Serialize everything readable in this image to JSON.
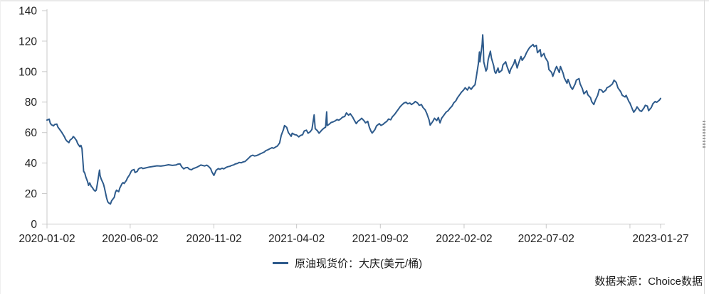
{
  "page": {
    "background": "#ffffff",
    "source": "数据来源：Choice数据"
  },
  "chart_data": {
    "type": "line",
    "title": "",
    "series_name": "原油现货价：大庆(美元/桶)",
    "unit": "美元/桶",
    "line_color": "#2E5B8C",
    "axis_color": "#c8c8c8",
    "label_color": "#222222",
    "grid": false,
    "legend_position": "bottom-center",
    "ylim": [
      0,
      140
    ],
    "y_ticks": [
      0,
      20,
      40,
      60,
      80,
      100,
      120,
      140
    ],
    "x_range": [
      "2020-01-02",
      "2023-01-27"
    ],
    "x_ticks": [
      {
        "date": "2020-01-02",
        "label": "2020-01-02"
      },
      {
        "date": "2020-06-02",
        "label": "2020-06-02"
      },
      {
        "date": "2020-11-02",
        "label": "2020-11-02"
      },
      {
        "date": "2021-04-02",
        "label": "2021-04-02"
      },
      {
        "date": "2021-09-02",
        "label": "2021-09-02"
      },
      {
        "date": "2022-02-02",
        "label": "2022-02-02"
      },
      {
        "date": "2022-07-02",
        "label": "2022-07-02"
      },
      {
        "date": "2022-12-02",
        "label": ""
      },
      {
        "date": "2023-01-27",
        "label": "2023-01-27"
      }
    ],
    "points": [
      [
        "2020-01-02",
        68.2
      ],
      [
        "2020-01-06",
        68.8
      ],
      [
        "2020-01-08",
        66.2
      ],
      [
        "2020-01-10",
        65.2
      ],
      [
        "2020-01-14",
        64.4
      ],
      [
        "2020-01-16",
        65.3
      ],
      [
        "2020-01-20",
        65.6
      ],
      [
        "2020-01-22",
        63.6
      ],
      [
        "2020-01-27",
        61.2
      ],
      [
        "2020-01-30",
        59.6
      ],
      [
        "2020-02-03",
        57.2
      ],
      [
        "2020-02-05",
        55.6
      ],
      [
        "2020-02-07",
        54.6
      ],
      [
        "2020-02-11",
        53.4
      ],
      [
        "2020-02-13",
        55.0
      ],
      [
        "2020-02-17",
        56.2
      ],
      [
        "2020-02-19",
        57.4
      ],
      [
        "2020-02-21",
        56.8
      ],
      [
        "2020-02-25",
        54.8
      ],
      [
        "2020-02-27",
        52.8
      ],
      [
        "2020-03-02",
        50.8
      ],
      [
        "2020-03-04",
        51.6
      ],
      [
        "2020-03-06",
        49.4
      ],
      [
        "2020-03-09",
        34.6
      ],
      [
        "2020-03-11",
        33.4
      ],
      [
        "2020-03-13",
        30.8
      ],
      [
        "2020-03-16",
        28.0
      ],
      [
        "2020-03-18",
        25.4
      ],
      [
        "2020-03-20",
        27.0
      ],
      [
        "2020-03-23",
        24.6
      ],
      [
        "2020-03-25",
        24.0
      ],
      [
        "2020-03-27",
        22.6
      ],
      [
        "2020-03-30",
        21.6
      ],
      [
        "2020-04-01",
        22.2
      ],
      [
        "2020-04-03",
        26.2
      ],
      [
        "2020-04-07",
        35.4
      ],
      [
        "2020-04-08",
        31.8
      ],
      [
        "2020-04-10",
        29.6
      ],
      [
        "2020-04-14",
        26.4
      ],
      [
        "2020-04-16",
        23.8
      ],
      [
        "2020-04-20",
        17.0
      ],
      [
        "2020-04-22",
        14.6
      ],
      [
        "2020-04-24",
        13.8
      ],
      [
        "2020-04-27",
        13.2
      ],
      [
        "2020-04-29",
        15.2
      ],
      [
        "2020-05-04",
        17.6
      ],
      [
        "2020-05-06",
        20.8
      ],
      [
        "2020-05-08",
        22.2
      ],
      [
        "2020-05-12",
        21.2
      ],
      [
        "2020-05-14",
        23.6
      ],
      [
        "2020-05-18",
        26.4
      ],
      [
        "2020-05-20",
        27.2
      ],
      [
        "2020-05-22",
        26.6
      ],
      [
        "2020-05-26",
        28.6
      ],
      [
        "2020-05-28",
        30.2
      ],
      [
        "2020-06-01",
        32.4
      ],
      [
        "2020-06-03",
        34.0
      ],
      [
        "2020-06-05",
        35.2
      ],
      [
        "2020-06-09",
        35.8
      ],
      [
        "2020-06-11",
        33.8
      ],
      [
        "2020-06-15",
        34.6
      ],
      [
        "2020-06-17",
        36.0
      ],
      [
        "2020-06-19",
        36.6
      ],
      [
        "2020-06-23",
        37.0
      ],
      [
        "2020-06-25",
        36.4
      ],
      [
        "2020-06-30",
        36.8
      ],
      [
        "2020-07-07",
        37.4
      ],
      [
        "2020-07-14",
        37.8
      ],
      [
        "2020-07-21",
        38.2
      ],
      [
        "2020-07-28",
        38.0
      ],
      [
        "2020-08-04",
        38.4
      ],
      [
        "2020-08-11",
        38.9
      ],
      [
        "2020-08-18",
        38.5
      ],
      [
        "2020-08-25",
        38.8
      ],
      [
        "2020-08-28",
        39.3
      ],
      [
        "2020-09-01",
        39.5
      ],
      [
        "2020-09-04",
        37.6
      ],
      [
        "2020-09-08",
        36.2
      ],
      [
        "2020-09-11",
        36.9
      ],
      [
        "2020-09-15",
        37.1
      ],
      [
        "2020-09-18",
        36.0
      ],
      [
        "2020-09-22",
        35.6
      ],
      [
        "2020-09-25",
        36.4
      ],
      [
        "2020-09-29",
        36.9
      ],
      [
        "2020-10-02",
        37.3
      ],
      [
        "2020-10-06",
        38.1
      ],
      [
        "2020-10-09",
        38.7
      ],
      [
        "2020-10-13",
        38.4
      ],
      [
        "2020-10-16",
        38.1
      ],
      [
        "2020-10-20",
        38.6
      ],
      [
        "2020-10-23",
        37.9
      ],
      [
        "2020-10-27",
        36.4
      ],
      [
        "2020-10-29",
        34.4
      ],
      [
        "2020-11-02",
        31.9
      ],
      [
        "2020-11-04",
        33.6
      ],
      [
        "2020-11-06",
        35.3
      ],
      [
        "2020-11-10",
        36.4
      ],
      [
        "2020-11-13",
        35.9
      ],
      [
        "2020-11-17",
        36.6
      ],
      [
        "2020-11-20",
        36.2
      ],
      [
        "2020-11-24",
        37.1
      ],
      [
        "2020-11-27",
        37.6
      ],
      [
        "2020-12-01",
        37.9
      ],
      [
        "2020-12-04",
        38.4
      ],
      [
        "2020-12-08",
        38.8
      ],
      [
        "2020-12-11",
        39.4
      ],
      [
        "2020-12-15",
        39.8
      ],
      [
        "2020-12-18",
        40.4
      ],
      [
        "2020-12-22",
        40.2
      ],
      [
        "2020-12-25",
        40.7
      ],
      [
        "2020-12-29",
        41.1
      ],
      [
        "2021-01-05",
        43.4
      ],
      [
        "2021-01-08",
        44.6
      ],
      [
        "2021-01-12",
        45.2
      ],
      [
        "2021-01-15",
        44.7
      ],
      [
        "2021-01-19",
        44.9
      ],
      [
        "2021-01-22",
        45.4
      ],
      [
        "2021-01-26",
        46.1
      ],
      [
        "2021-01-29",
        46.6
      ],
      [
        "2021-02-02",
        47.3
      ],
      [
        "2021-02-05",
        48.2
      ],
      [
        "2021-02-09",
        48.8
      ],
      [
        "2021-02-12",
        49.4
      ],
      [
        "2021-02-16",
        50.1
      ],
      [
        "2021-02-19",
        49.7
      ],
      [
        "2021-02-23",
        50.6
      ],
      [
        "2021-02-26",
        51.2
      ],
      [
        "2021-03-02",
        53.2
      ],
      [
        "2021-03-05",
        58.2
      ],
      [
        "2021-03-09",
        62.0
      ],
      [
        "2021-03-11",
        64.6
      ],
      [
        "2021-03-15",
        63.4
      ],
      [
        "2021-03-18",
        60.0
      ],
      [
        "2021-03-23",
        57.6
      ],
      [
        "2021-03-25",
        59.6
      ],
      [
        "2021-03-30",
        58.6
      ],
      [
        "2021-04-02",
        58.4
      ],
      [
        "2021-04-06",
        57.2
      ],
      [
        "2021-04-09",
        58.1
      ],
      [
        "2021-04-13",
        58.6
      ],
      [
        "2021-04-16",
        61.1
      ],
      [
        "2021-04-20",
        61.6
      ],
      [
        "2021-04-23",
        59.6
      ],
      [
        "2021-04-27",
        60.6
      ],
      [
        "2021-04-30",
        62.1
      ],
      [
        "2021-05-04",
        71.6
      ],
      [
        "2021-05-06",
        62.6
      ],
      [
        "2021-05-10",
        61.2
      ],
      [
        "2021-05-13",
        59.6
      ],
      [
        "2021-05-18",
        61.6
      ],
      [
        "2021-05-21",
        62.6
      ],
      [
        "2021-05-25",
        63.6
      ],
      [
        "2021-05-27",
        73.6
      ],
      [
        "2021-05-28",
        64.6
      ],
      [
        "2021-06-01",
        65.6
      ],
      [
        "2021-06-04",
        66.6
      ],
      [
        "2021-06-08",
        67.1
      ],
      [
        "2021-06-11",
        67.6
      ],
      [
        "2021-06-15",
        68.6
      ],
      [
        "2021-06-18",
        68.1
      ],
      [
        "2021-06-22",
        69.1
      ],
      [
        "2021-06-25",
        70.1
      ],
      [
        "2021-06-29",
        70.6
      ],
      [
        "2021-07-02",
        72.9
      ],
      [
        "2021-07-06",
        71.4
      ],
      [
        "2021-07-09",
        72.4
      ],
      [
        "2021-07-13",
        70.4
      ],
      [
        "2021-07-16",
        68.4
      ],
      [
        "2021-07-20",
        65.9
      ],
      [
        "2021-07-23",
        67.4
      ],
      [
        "2021-07-27",
        68.4
      ],
      [
        "2021-07-30",
        69.4
      ],
      [
        "2021-08-03",
        67.9
      ],
      [
        "2021-08-06",
        66.4
      ],
      [
        "2021-08-10",
        67.4
      ],
      [
        "2021-08-13",
        63.4
      ],
      [
        "2021-08-16",
        60.9
      ],
      [
        "2021-08-18",
        59.7
      ],
      [
        "2021-08-23",
        61.9
      ],
      [
        "2021-08-26",
        64.4
      ],
      [
        "2021-08-31",
        65.9
      ],
      [
        "2021-09-03",
        64.7
      ],
      [
        "2021-09-07",
        65.4
      ],
      [
        "2021-09-10",
        66.4
      ],
      [
        "2021-09-14",
        67.4
      ],
      [
        "2021-09-17",
        68.9
      ],
      [
        "2021-09-21",
        68.4
      ],
      [
        "2021-09-24",
        70.4
      ],
      [
        "2021-09-28",
        71.9
      ],
      [
        "2021-10-01",
        73.4
      ],
      [
        "2021-10-05",
        75.4
      ],
      [
        "2021-10-08",
        76.9
      ],
      [
        "2021-10-12",
        78.4
      ],
      [
        "2021-10-15",
        79.4
      ],
      [
        "2021-10-19",
        79.9
      ],
      [
        "2021-10-22",
        78.9
      ],
      [
        "2021-10-26",
        79.4
      ],
      [
        "2021-10-29",
        78.4
      ],
      [
        "2021-11-02",
        79.4
      ],
      [
        "2021-11-05",
        80.4
      ],
      [
        "2021-11-09",
        79.4
      ],
      [
        "2021-11-12",
        77.9
      ],
      [
        "2021-11-16",
        78.4
      ],
      [
        "2021-11-19",
        76.4
      ],
      [
        "2021-11-23",
        74.9
      ],
      [
        "2021-11-26",
        72.4
      ],
      [
        "2021-11-30",
        68.4
      ],
      [
        "2021-12-02",
        64.9
      ],
      [
        "2021-12-07",
        67.4
      ],
      [
        "2021-12-10",
        69.4
      ],
      [
        "2021-12-14",
        67.9
      ],
      [
        "2021-12-17",
        69.9
      ],
      [
        "2021-12-20",
        66.4
      ],
      [
        "2021-12-23",
        69.4
      ],
      [
        "2021-12-28",
        71.9
      ],
      [
        "2021-12-31",
        73.4
      ],
      [
        "2022-01-04",
        74.4
      ],
      [
        "2022-01-07",
        75.9
      ],
      [
        "2022-01-11",
        77.4
      ],
      [
        "2022-01-14",
        79.4
      ],
      [
        "2022-01-18",
        80.9
      ],
      [
        "2022-01-21",
        82.9
      ],
      [
        "2022-01-25",
        84.9
      ],
      [
        "2022-01-28",
        86.4
      ],
      [
        "2022-02-01",
        87.9
      ],
      [
        "2022-02-04",
        89.4
      ],
      [
        "2022-02-08",
        87.9
      ],
      [
        "2022-02-11",
        89.9
      ],
      [
        "2022-02-15",
        88.4
      ],
      [
        "2022-02-18",
        89.9
      ],
      [
        "2022-02-22",
        91.4
      ],
      [
        "2022-02-24",
        95.9
      ],
      [
        "2022-02-28",
        104.9
      ],
      [
        "2022-03-02",
        112.9
      ],
      [
        "2022-03-03",
        106.4
      ],
      [
        "2022-03-07",
        117.9
      ],
      [
        "2022-03-08",
        124.1
      ],
      [
        "2022-03-09",
        117.4
      ],
      [
        "2022-03-10",
        106.4
      ],
      [
        "2022-03-14",
        100.4
      ],
      [
        "2022-03-16",
        101.9
      ],
      [
        "2022-03-18",
        107.9
      ],
      [
        "2022-03-22",
        113.4
      ],
      [
        "2022-03-24",
        108.9
      ],
      [
        "2022-03-28",
        103.9
      ],
      [
        "2022-03-30",
        99.9
      ],
      [
        "2022-04-01",
        98.9
      ],
      [
        "2022-04-05",
        102.4
      ],
      [
        "2022-04-07",
        99.4
      ],
      [
        "2022-04-12",
        100.9
      ],
      [
        "2022-04-14",
        104.4
      ],
      [
        "2022-04-19",
        106.4
      ],
      [
        "2022-04-21",
        103.9
      ],
      [
        "2022-04-26",
        98.9
      ],
      [
        "2022-04-28",
        101.4
      ],
      [
        "2022-05-04",
        105.4
      ],
      [
        "2022-05-06",
        107.9
      ],
      [
        "2022-05-10",
        102.4
      ],
      [
        "2022-05-12",
        104.9
      ],
      [
        "2022-05-17",
        109.9
      ],
      [
        "2022-05-19",
        107.4
      ],
      [
        "2022-05-24",
        109.9
      ],
      [
        "2022-05-27",
        112.4
      ],
      [
        "2022-05-31",
        114.9
      ],
      [
        "2022-06-02",
        115.9
      ],
      [
        "2022-06-08",
        117.8
      ],
      [
        "2022-06-10",
        116.4
      ],
      [
        "2022-06-14",
        117.2
      ],
      [
        "2022-06-16",
        112.4
      ],
      [
        "2022-06-21",
        114.4
      ],
      [
        "2022-06-23",
        109.9
      ],
      [
        "2022-06-28",
        111.9
      ],
      [
        "2022-06-30",
        109.4
      ],
      [
        "2022-07-05",
        106.4
      ],
      [
        "2022-07-07",
        101.4
      ],
      [
        "2022-07-12",
        99.4
      ],
      [
        "2022-07-14",
        96.9
      ],
      [
        "2022-07-19",
        101.9
      ],
      [
        "2022-07-21",
        103.4
      ],
      [
        "2022-07-26",
        99.4
      ],
      [
        "2022-07-28",
        103.4
      ],
      [
        "2022-08-02",
        98.9
      ],
      [
        "2022-08-04",
        95.9
      ],
      [
        "2022-08-09",
        92.4
      ],
      [
        "2022-08-11",
        94.9
      ],
      [
        "2022-08-16",
        89.9
      ],
      [
        "2022-08-19",
        88.4
      ],
      [
        "2022-08-24",
        91.9
      ],
      [
        "2022-08-26",
        94.4
      ],
      [
        "2022-08-31",
        95.4
      ],
      [
        "2022-09-02",
        91.9
      ],
      [
        "2022-09-06",
        88.9
      ],
      [
        "2022-09-09",
        85.4
      ],
      [
        "2022-09-14",
        87.4
      ],
      [
        "2022-09-16",
        84.9
      ],
      [
        "2022-09-21",
        82.9
      ],
      [
        "2022-09-23",
        80.4
      ],
      [
        "2022-09-27",
        78.4
      ],
      [
        "2022-09-30",
        81.4
      ],
      [
        "2022-10-04",
        84.4
      ],
      [
        "2022-10-07",
        88.4
      ],
      [
        "2022-10-11",
        87.9
      ],
      [
        "2022-10-14",
        86.4
      ],
      [
        "2022-10-19",
        87.9
      ],
      [
        "2022-10-21",
        89.4
      ],
      [
        "2022-10-26",
        90.4
      ],
      [
        "2022-10-31",
        91.9
      ],
      [
        "2022-11-03",
        94.4
      ],
      [
        "2022-11-07",
        92.9
      ],
      [
        "2022-11-10",
        89.4
      ],
      [
        "2022-11-15",
        86.9
      ],
      [
        "2022-11-18",
        84.4
      ],
      [
        "2022-11-23",
        83.4
      ],
      [
        "2022-11-25",
        84.4
      ],
      [
        "2022-11-30",
        80.4
      ],
      [
        "2022-12-02",
        79.4
      ],
      [
        "2022-12-07",
        74.9
      ],
      [
        "2022-12-09",
        73.4
      ],
      [
        "2022-12-13",
        75.4
      ],
      [
        "2022-12-15",
        76.9
      ],
      [
        "2022-12-20",
        74.4
      ],
      [
        "2022-12-23",
        73.9
      ],
      [
        "2022-12-28",
        76.4
      ],
      [
        "2022-12-30",
        77.9
      ],
      [
        "2023-01-03",
        77.4
      ],
      [
        "2023-01-05",
        74.4
      ],
      [
        "2023-01-10",
        76.4
      ],
      [
        "2023-01-13",
        78.9
      ],
      [
        "2023-01-17",
        80.4
      ],
      [
        "2023-01-20",
        79.9
      ],
      [
        "2023-01-25",
        81.4
      ],
      [
        "2023-01-27",
        82.4
      ]
    ]
  }
}
